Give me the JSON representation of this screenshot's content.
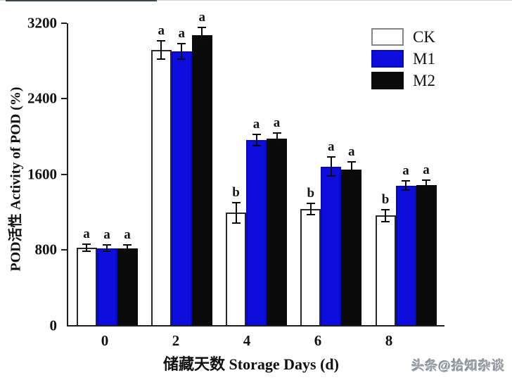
{
  "watermark": {
    "text": "头条@拾知杂谈"
  },
  "chart_data": {
    "type": "bar",
    "title": "",
    "xlabel": "储藏天数 Storage Days (d)",
    "ylabel": "POD活性 Activity of POD (%)",
    "categories": [
      "0",
      "2",
      "4",
      "6",
      "8"
    ],
    "y_ticks": [
      "0",
      "800",
      "1600",
      "2400",
      "3200"
    ],
    "ylim": [
      0,
      3200
    ],
    "grid": false,
    "legend_position": "top-right-inside",
    "series": [
      {
        "name": "CK",
        "fill": "#ffffff",
        "border": "#26262c",
        "values": [
          820,
          2915,
          1190,
          1230,
          1160
        ],
        "errors": [
          40,
          95,
          110,
          60,
          65
        ],
        "letters": [
          "a",
          "a",
          "b",
          "b",
          "b"
        ]
      },
      {
        "name": "M1",
        "fill": "#0d0ddd",
        "border": "#0909b0",
        "values": [
          815,
          2900,
          1965,
          1680,
          1480
        ],
        "errors": [
          35,
          80,
          60,
          100,
          50
        ],
        "letters": [
          "a",
          "a",
          "a",
          "a",
          "a"
        ]
      },
      {
        "name": "M2",
        "fill": "#0a0a0a",
        "border": "#0a0a0a",
        "values": [
          815,
          3070,
          1975,
          1645,
          1485
        ],
        "errors": [
          35,
          85,
          60,
          85,
          50
        ],
        "letters": [
          "a",
          "a",
          "a",
          "a",
          "a"
        ]
      }
    ]
  }
}
